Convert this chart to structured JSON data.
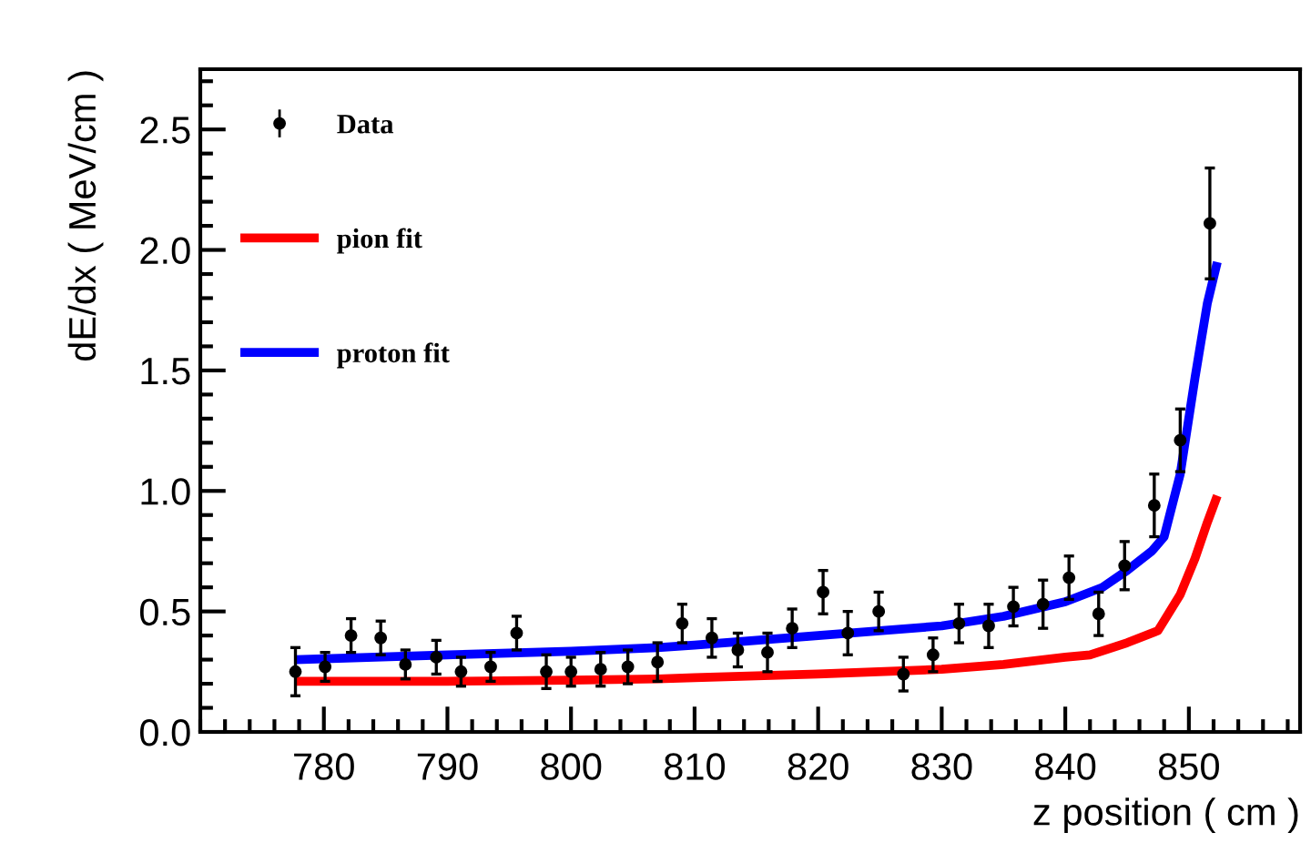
{
  "chart_data": {
    "type": "scatter",
    "xlabel": "z position ( cm )",
    "ylabel": "dE/dx ( MeV/cm )",
    "xlim": [
      770,
      859
    ],
    "ylim": [
      0,
      2.75
    ],
    "xticks": [
      780,
      790,
      800,
      810,
      820,
      830,
      840,
      850
    ],
    "yticks": [
      {
        "value": 0,
        "label": "0.0"
      },
      0.5,
      {
        "value": 1,
        "label": "1.0"
      },
      1.5,
      {
        "value": 2,
        "label": "2.0"
      },
      2.5
    ],
    "grid": false,
    "legend": "top left",
    "series": [
      {
        "name": "Data",
        "color": "#000000",
        "marker": "circle",
        "x": [
          777.7,
          780.1,
          782.2,
          784.6,
          786.6,
          789.1,
          791.1,
          793.5,
          795.6,
          798.0,
          800.0,
          802.4,
          804.6,
          807.0,
          809.0,
          811.4,
          813.5,
          815.9,
          817.9,
          820.4,
          822.4,
          824.9,
          826.9,
          829.3,
          831.4,
          833.8,
          835.8,
          838.2,
          840.3,
          842.7,
          844.8,
          847.2,
          849.3,
          851.7
        ],
        "values": [
          0.25,
          0.27,
          0.4,
          0.39,
          0.28,
          0.31,
          0.25,
          0.27,
          0.41,
          0.25,
          0.25,
          0.26,
          0.27,
          0.29,
          0.45,
          0.39,
          0.34,
          0.33,
          0.43,
          0.58,
          0.41,
          0.5,
          0.24,
          0.32,
          0.45,
          0.44,
          0.52,
          0.53,
          0.64,
          0.49,
          0.69,
          0.94,
          1.21,
          2.11
        ],
        "errors": [
          0.1,
          0.06,
          0.07,
          0.07,
          0.06,
          0.07,
          0.06,
          0.06,
          0.07,
          0.07,
          0.06,
          0.07,
          0.07,
          0.08,
          0.08,
          0.08,
          0.07,
          0.08,
          0.08,
          0.09,
          0.09,
          0.08,
          0.07,
          0.07,
          0.08,
          0.09,
          0.08,
          0.1,
          0.09,
          0.09,
          0.1,
          0.13,
          0.13,
          0.23
        ]
      },
      {
        "name": "pion fit",
        "type": "line",
        "color": "#ff0000",
        "line_style": "solid",
        "marker": "none",
        "x": [
          777.7,
          790,
          800,
          807,
          810,
          820,
          830,
          835,
          840,
          842,
          845,
          847.5,
          849.3,
          850.5,
          851.5,
          852.3
        ],
        "values": [
          0.21,
          0.21,
          0.215,
          0.22,
          0.225,
          0.24,
          0.26,
          0.28,
          0.31,
          0.32,
          0.37,
          0.42,
          0.57,
          0.72,
          0.87,
          0.98
        ]
      },
      {
        "name": "proton fit",
        "type": "line",
        "color": "#0000ff",
        "line_style": "solid",
        "marker": "none",
        "x": [
          777.7,
          790,
          800,
          807,
          810,
          820,
          830,
          835,
          840,
          843,
          845,
          847,
          848,
          849.3,
          850.5,
          851.5,
          852.3
        ],
        "values": [
          0.3,
          0.32,
          0.335,
          0.35,
          0.36,
          0.4,
          0.44,
          0.48,
          0.54,
          0.6,
          0.67,
          0.75,
          0.81,
          1.07,
          1.47,
          1.78,
          1.95
        ]
      }
    ]
  }
}
